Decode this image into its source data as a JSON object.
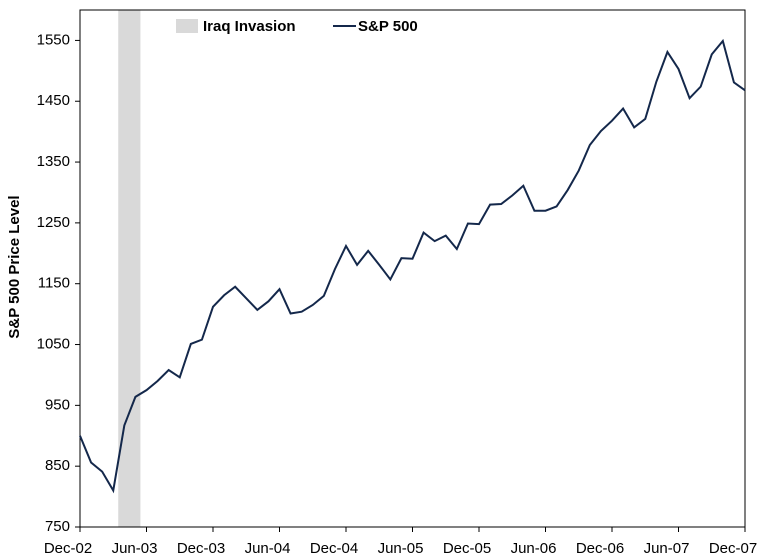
{
  "chart_data": {
    "type": "line",
    "y_label": "S&P 500 Price Level",
    "x": [
      "2002-12",
      "2003-01",
      "2003-02",
      "2003-03",
      "2003-04",
      "2003-05",
      "2003-06",
      "2003-07",
      "2003-08",
      "2003-09",
      "2003-10",
      "2003-11",
      "2003-12",
      "2004-01",
      "2004-02",
      "2004-03",
      "2004-04",
      "2004-05",
      "2004-06",
      "2004-07",
      "2004-08",
      "2004-09",
      "2004-10",
      "2004-11",
      "2004-12",
      "2005-01",
      "2005-02",
      "2005-03",
      "2005-04",
      "2005-05",
      "2005-06",
      "2005-07",
      "2005-08",
      "2005-09",
      "2005-10",
      "2005-11",
      "2005-12",
      "2006-01",
      "2006-02",
      "2006-03",
      "2006-04",
      "2006-05",
      "2006-06",
      "2006-07",
      "2006-08",
      "2006-09",
      "2006-10",
      "2006-11",
      "2006-12",
      "2007-01",
      "2007-02",
      "2007-03",
      "2007-04",
      "2007-05",
      "2007-06",
      "2007-07",
      "2007-08",
      "2007-09",
      "2007-10",
      "2007-11",
      "2007-12"
    ],
    "series": [
      {
        "name": "S&P 500",
        "color": "#14284b",
        "values": [
          900,
          856,
          841,
          810,
          917,
          964,
          975,
          990,
          1008,
          996,
          1051,
          1058,
          1112,
          1131,
          1145,
          1126,
          1107,
          1121,
          1141,
          1101,
          1104,
          1115,
          1130,
          1174,
          1212,
          1181,
          1204,
          1181,
          1157,
          1192,
          1191,
          1234,
          1220,
          1229,
          1207,
          1249,
          1248,
          1280,
          1281,
          1295,
          1311,
          1270,
          1270,
          1277,
          1304,
          1336,
          1378,
          1401,
          1418,
          1438,
          1407,
          1421,
          1482,
          1531,
          1503,
          1455,
          1474,
          1527,
          1549,
          1481,
          1468
        ]
      }
    ],
    "shaded": {
      "name": "Iraq Invasion",
      "color": "#d9d9d9",
      "x": [
        "2003-03",
        "2003-05"
      ]
    },
    "xlim": [
      "2002-12",
      "2007-12"
    ],
    "xticks": [
      {
        "value": "2002-12",
        "label": "Dec-02"
      },
      {
        "value": "2003-06",
        "label": "Jun-03"
      },
      {
        "value": "2003-12",
        "label": "Dec-03"
      },
      {
        "value": "2004-06",
        "label": "Jun-04"
      },
      {
        "value": "2004-12",
        "label": "Dec-04"
      },
      {
        "value": "2005-06",
        "label": "Jun-05"
      },
      {
        "value": "2005-12",
        "label": "Dec-05"
      },
      {
        "value": "2006-06",
        "label": "Jun-06"
      },
      {
        "value": "2006-12",
        "label": "Dec-06"
      },
      {
        "value": "2007-06",
        "label": "Jun-07"
      },
      {
        "value": "2007-12",
        "label": "Dec-07"
      }
    ],
    "ylim": [
      750,
      1600
    ],
    "yticks": [
      750,
      850,
      950,
      1050,
      1150,
      1250,
      1350,
      1450,
      1550
    ],
    "grid": false
  }
}
